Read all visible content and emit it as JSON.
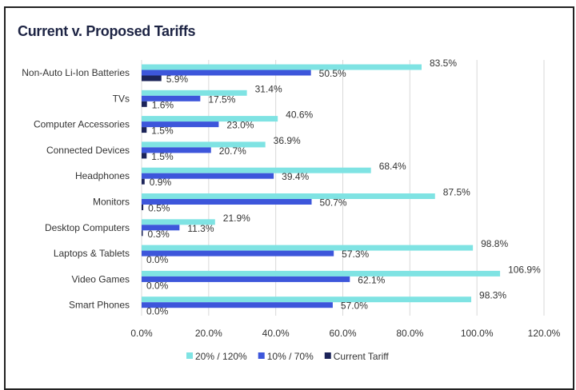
{
  "chart_data": {
    "type": "bar",
    "orientation": "horizontal",
    "title": "Current v. Proposed Tariffs",
    "categories": [
      "Non-Auto Li-Ion Batteries",
      "TVs",
      "Computer Accessories",
      "Connected Devices",
      "Headphones",
      "Monitors",
      "Desktop Computers",
      "Laptops & Tablets",
      "Video Games",
      "Smart Phones"
    ],
    "series": [
      {
        "name": "20% / 120%",
        "color": "#7fe3e3",
        "values": [
          83.5,
          31.4,
          40.6,
          36.9,
          68.4,
          87.5,
          21.9,
          98.8,
          106.9,
          98.3
        ]
      },
      {
        "name": "10% / 70%",
        "color": "#3d56db",
        "values": [
          50.5,
          17.5,
          23.0,
          20.7,
          39.4,
          50.7,
          11.3,
          57.3,
          62.1,
          57.0
        ]
      },
      {
        "name": "Current Tariff",
        "color": "#1c2459",
        "values": [
          5.9,
          1.6,
          1.5,
          1.5,
          0.9,
          0.5,
          0.3,
          0.0,
          0.0,
          0.0
        ]
      }
    ],
    "xlim": [
      0,
      120
    ],
    "xticks": [
      "0.0%",
      "20.0%",
      "40.0%",
      "60.0%",
      "80.0%",
      "100.0%",
      "120.0%"
    ],
    "grid": true,
    "legend": "bottom",
    "xlabel": "",
    "ylabel": ""
  }
}
